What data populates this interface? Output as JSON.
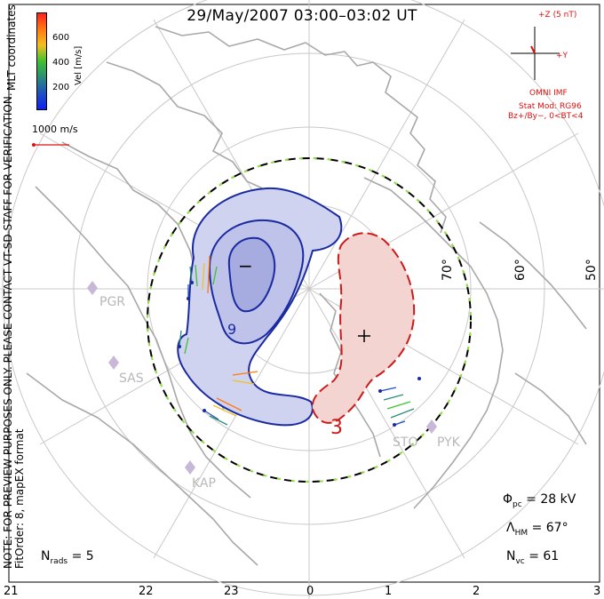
{
  "title": "29/May/2007 03:00–03:02 UT",
  "coordinates_label": "MLT coordinates",
  "note_line1": "NOTE: FOR PREVIEW PURPOSES ONLY. PLEASE CONTACT VT-SD STAFF FOR VERIFICATION.",
  "note_line2": "FitOrder: 8, mapEX format",
  "colorbar": {
    "label": "Vel [m/s]",
    "ticks": [
      "600",
      "400",
      "200"
    ],
    "colors": [
      "#ff2020",
      "#ff7a10",
      "#f2c020",
      "#40c030",
      "#2a8c7a",
      "#2050c0",
      "#1020f0"
    ]
  },
  "vector_scale_label": "1000 m/s",
  "imf": {
    "bz_label": "+Z (5 nT)",
    "by_label": "+Y",
    "source": "OMNI IMF",
    "model": "Stat Mod: RG96",
    "condition": "Bz+/By−, 0<BT<4"
  },
  "stats": {
    "phi_pc_symbol": "Φ",
    "phi_pc_sub": "pc",
    "phi_pc_value": "= 28 kV",
    "lambda_hm_symbol": "Λ",
    "lambda_hm_sub": "HM",
    "lambda_hm_value": "= 67°",
    "n_vc_symbol": "N",
    "n_vc_sub": "vc",
    "n_vc_value": "= 61",
    "n_rads_symbol": "N",
    "n_rads_sub": "rads",
    "n_rads_value": "= 5"
  },
  "mlt_ticks": [
    "21",
    "22",
    "23",
    "0",
    "1",
    "2",
    "3"
  ],
  "latitude_labels": [
    "70°",
    "60°",
    "50°"
  ],
  "stations": [
    "PGR",
    "SAS",
    "KAP",
    "STO",
    "PYK"
  ],
  "contour_labels": {
    "min_sign": "−",
    "max_sign": "+",
    "minus_value": "9",
    "plus_value": "3"
  },
  "colors": {
    "negative_cell": "#1a2aa0",
    "negative_fill": "#cfd3ef",
    "positive_cell": "#cc1a1a",
    "positive_fill": "#f4d4d0",
    "grid": "#c8c8c8",
    "coast": "#a8a8a8",
    "hm_boundary": "#000000",
    "hm_dash": "#90e040"
  },
  "plot": {
    "pole_mlt": 0,
    "grid_lat_step": 10,
    "grid_mlt_step_hours": 2
  }
}
